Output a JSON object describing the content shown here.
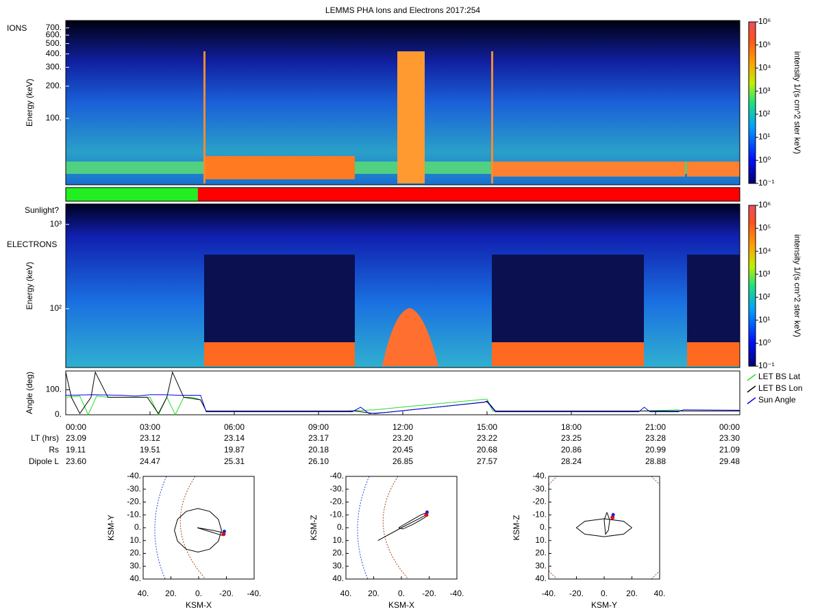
{
  "chart_data": [
    {
      "type": "spectrogram",
      "title": "LEMMS PHA Ions and Electrons  2017:254",
      "label": "IONS",
      "ylabel": "Energy (keV)",
      "ylog": true,
      "ylim": [
        24,
        820
      ],
      "yticks": [
        {
          "value": 100,
          "label": "100."
        },
        {
          "value": 200,
          "label": "200."
        },
        {
          "value": 300,
          "label": "300."
        },
        {
          "value": 400,
          "label": "400."
        },
        {
          "value": 500,
          "label": "500."
        },
        {
          "value": 600,
          "label": "600."
        },
        {
          "value": 700,
          "label": "700."
        }
      ],
      "colorbar": {
        "label": "intensity 1/(s cm^2 ster keV)",
        "lim": [
          0.1,
          1000000
        ],
        "ticks": [
          {
            "value": 0.1,
            "label": "10⁻¹"
          },
          {
            "value": 1,
            "label": "10⁰"
          },
          {
            "value": 10,
            "label": "10¹"
          },
          {
            "value": 100,
            "label": "10²"
          },
          {
            "value": 1000,
            "label": "10³"
          },
          {
            "value": 10000,
            "label": "10⁴"
          },
          {
            "value": 100000,
            "label": "10⁵"
          },
          {
            "value": 1000000,
            "label": "10⁶"
          }
        ]
      }
    },
    {
      "type": "timeline",
      "label": "Sunlight?",
      "xlim": [
        0,
        24
      ],
      "segments": [
        {
          "start": 0,
          "end": 4.7,
          "color": "#22ee22"
        },
        {
          "start": 4.7,
          "end": 24,
          "color": "#ff0000"
        }
      ]
    },
    {
      "type": "spectrogram",
      "label": "ELECTRONS",
      "ylabel": "Energy (keV)",
      "ylog": true,
      "ylim": [
        20,
        1750
      ],
      "yticks": [
        {
          "value": 100,
          "label": "10²"
        },
        {
          "value": 1000,
          "label": "10³"
        }
      ],
      "colorbar": {
        "label": "intensity 1/(s cm^2 ster keV)",
        "lim": [
          0.1,
          1000000
        ],
        "ticks": [
          {
            "value": 0.1,
            "label": "10⁻¹"
          },
          {
            "value": 1,
            "label": "10⁰"
          },
          {
            "value": 10,
            "label": "10¹"
          },
          {
            "value": 100,
            "label": "10²"
          },
          {
            "value": 1000,
            "label": "10³"
          },
          {
            "value": 10000,
            "label": "10⁴"
          },
          {
            "value": 100000,
            "label": "10⁵"
          },
          {
            "value": 1000000,
            "label": "10⁶"
          }
        ]
      }
    },
    {
      "type": "line",
      "ylabel": "Angle (deg)",
      "xlim": [
        0,
        24
      ],
      "ylim": [
        0,
        175
      ],
      "yticks": [
        {
          "value": 0,
          "label": "0."
        },
        {
          "value": 100,
          "label": "100."
        }
      ],
      "xticks": [
        {
          "value": 0,
          "label": "00:00"
        },
        {
          "value": 3,
          "label": "03:00"
        },
        {
          "value": 6,
          "label": "06:00"
        },
        {
          "value": 9,
          "label": "09:00"
        },
        {
          "value": 12,
          "label": "12:00"
        },
        {
          "value": 15,
          "label": "15:00"
        },
        {
          "value": 18,
          "label": "18:00"
        },
        {
          "value": 21,
          "label": "21:00"
        },
        {
          "value": 24,
          "label": "00:00"
        }
      ],
      "legend": "right",
      "series": [
        {
          "name": "LET BS Lat",
          "color": "#22dd22",
          "x": [
            0,
            0.5,
            0.8,
            1.1,
            1.5,
            2,
            2.5,
            3,
            3.3,
            3.6,
            3.9,
            4.2,
            4.5,
            4.8,
            5,
            10,
            11,
            15,
            15.2,
            20.5,
            21.8,
            22,
            24
          ],
          "values": [
            70,
            75,
            0,
            75,
            70,
            70,
            70,
            70,
            0,
            70,
            0,
            70,
            70,
            60,
            15,
            15,
            20,
            63,
            15,
            15,
            20,
            15,
            15
          ]
        },
        {
          "name": "LET BS Lon",
          "color": "#000000",
          "x": [
            0,
            0.2,
            0.5,
            0.9,
            1.05,
            1.5,
            2,
            2.5,
            2.9,
            3.3,
            3.6,
            3.8,
            4.2,
            4.8,
            5,
            10.3,
            11,
            14.9,
            15,
            15.3,
            24
          ],
          "values": [
            170,
            70,
            5,
            70,
            170,
            70,
            70,
            70,
            70,
            5,
            70,
            170,
            70,
            60,
            15,
            15,
            5,
            50,
            55,
            15,
            15
          ]
        },
        {
          "name": "Sun Angle",
          "color": "#0000ee",
          "x": [
            0,
            1,
            2,
            2.5,
            3,
            3.5,
            4,
            4.8,
            5,
            10.2,
            10.5,
            10.8,
            11.5,
            15,
            15.3,
            20.4,
            20.6,
            20.8,
            21.8,
            22,
            24
          ],
          "values": [
            78,
            80,
            78,
            75,
            80,
            80,
            78,
            78,
            12,
            12,
            30,
            5,
            10,
            52,
            12,
            12,
            30,
            12,
            12,
            20,
            18
          ]
        }
      ]
    },
    {
      "type": "table",
      "rows": [
        {
          "label": "LT (hrs)",
          "values": [
            "23.09",
            "23.12",
            "23.14",
            "23.17",
            "23.20",
            "23.22",
            "23.25",
            "23.28",
            "23.30"
          ]
        },
        {
          "label": "Rs",
          "values": [
            "19.11",
            "19.51",
            "19.87",
            "20.18",
            "20.45",
            "20.68",
            "20.86",
            "20.99",
            "21.09"
          ]
        },
        {
          "label": "Dipole L",
          "values": [
            "23.60",
            "24.47",
            "25.31",
            "26.10",
            "26.85",
            "27.57",
            "28.24",
            "28.88",
            "29.48"
          ]
        }
      ]
    },
    {
      "type": "orbit",
      "xlabel": "KSM-X",
      "ylabel": "KSM-Y",
      "xlim": [
        40,
        -40
      ],
      "ylim": [
        40,
        -40
      ],
      "xticks": [
        {
          "value": 40,
          "label": "40."
        },
        {
          "value": 20,
          "label": "20."
        },
        {
          "value": 0,
          "label": "0."
        },
        {
          "value": -20,
          "label": "-20."
        },
        {
          "value": -40,
          "label": "-40."
        }
      ],
      "yticks": [
        {
          "value": -40,
          "label": "-40."
        },
        {
          "value": -30,
          "label": "-30."
        },
        {
          "value": -20,
          "label": "-20."
        },
        {
          "value": -10,
          "label": "-10."
        },
        {
          "value": 0,
          "label": "0."
        },
        {
          "value": 10,
          "label": "10."
        },
        {
          "value": 20,
          "label": "20."
        },
        {
          "value": 30,
          "label": "30."
        },
        {
          "value": 40,
          "label": "40."
        }
      ],
      "orbit": {
        "x": [
          17.5,
          15.2,
          9,
          0.5,
          -8,
          -14.2,
          -16.5,
          -14.2,
          -8,
          0.5,
          9,
          15.2,
          17.5
        ],
        "y": [
          2,
          10.5,
          16.7,
          19,
          16.7,
          10.5,
          2,
          -6.5,
          -12.7,
          -15,
          -12.7,
          -6.5,
          2
        ]
      },
      "track": {
        "x": [
          1,
          -10,
          -18,
          -17,
          -8,
          1
        ],
        "y": [
          0,
          2,
          4,
          6,
          3,
          0
        ]
      },
      "position": {
        "x": -18,
        "y": 5
      }
    },
    {
      "type": "orbit",
      "xlabel": "KSM-X",
      "ylabel": "KSM-Z",
      "xlim": [
        40,
        -40
      ],
      "ylim": [
        40,
        -40
      ],
      "xticks": [
        {
          "value": 40,
          "label": "40."
        },
        {
          "value": 20,
          "label": "20."
        },
        {
          "value": 0,
          "label": "0."
        },
        {
          "value": -20,
          "label": "-20."
        },
        {
          "value": -40,
          "label": "-40."
        }
      ],
      "yticks": [
        {
          "value": -40,
          "label": "-40."
        },
        {
          "value": -30,
          "label": "-30."
        },
        {
          "value": -20,
          "label": "-20."
        },
        {
          "value": -10,
          "label": "-10."
        },
        {
          "value": 0,
          "label": "0."
        },
        {
          "value": 10,
          "label": "10."
        },
        {
          "value": 20,
          "label": "20."
        },
        {
          "value": 30,
          "label": "30."
        },
        {
          "value": 40,
          "label": "40."
        }
      ],
      "orbit": {
        "x": [
          2,
          -6,
          -14,
          -19,
          -17,
          -9,
          -1,
          2
        ],
        "y": [
          0,
          -5,
          -10,
          -12,
          -8,
          -3,
          1,
          0
        ]
      },
      "track": {
        "x": [
          17,
          0,
          -18
        ],
        "y": [
          10,
          0,
          -10
        ]
      },
      "position": {
        "x": -18,
        "y": -10
      }
    },
    {
      "type": "orbit",
      "xlabel": "KSM-Y",
      "ylabel": "KSM-Z",
      "xlim": [
        -40,
        40
      ],
      "ylim": [
        40,
        -40
      ],
      "xticks": [
        {
          "value": -40,
          "label": "-40."
        },
        {
          "value": -20,
          "label": "-20."
        },
        {
          "value": 0,
          "label": "0."
        },
        {
          "value": 20,
          "label": "20."
        },
        {
          "value": 40,
          "label": "40."
        }
      ],
      "yticks": [
        {
          "value": -40,
          "label": "-40."
        },
        {
          "value": -30,
          "label": "-30."
        },
        {
          "value": -20,
          "label": "-20."
        },
        {
          "value": -10,
          "label": "-10."
        },
        {
          "value": 0,
          "label": "0."
        },
        {
          "value": 10,
          "label": "10."
        },
        {
          "value": 20,
          "label": "20."
        },
        {
          "value": 30,
          "label": "30."
        },
        {
          "value": 40,
          "label": "40."
        }
      ],
      "orbit": {
        "x": [
          20,
          14,
          0,
          -14,
          -20,
          -14,
          0,
          14,
          20
        ],
        "y": [
          0,
          5,
          7,
          5,
          0,
          -5,
          -7,
          -5,
          0
        ]
      },
      "track": {
        "x": [
          2,
          4,
          3,
          1,
          0,
          2
        ],
        "y": [
          -12,
          -6,
          2,
          5,
          -6,
          -12
        ]
      },
      "position": {
        "x": 6,
        "y": -8
      }
    }
  ]
}
